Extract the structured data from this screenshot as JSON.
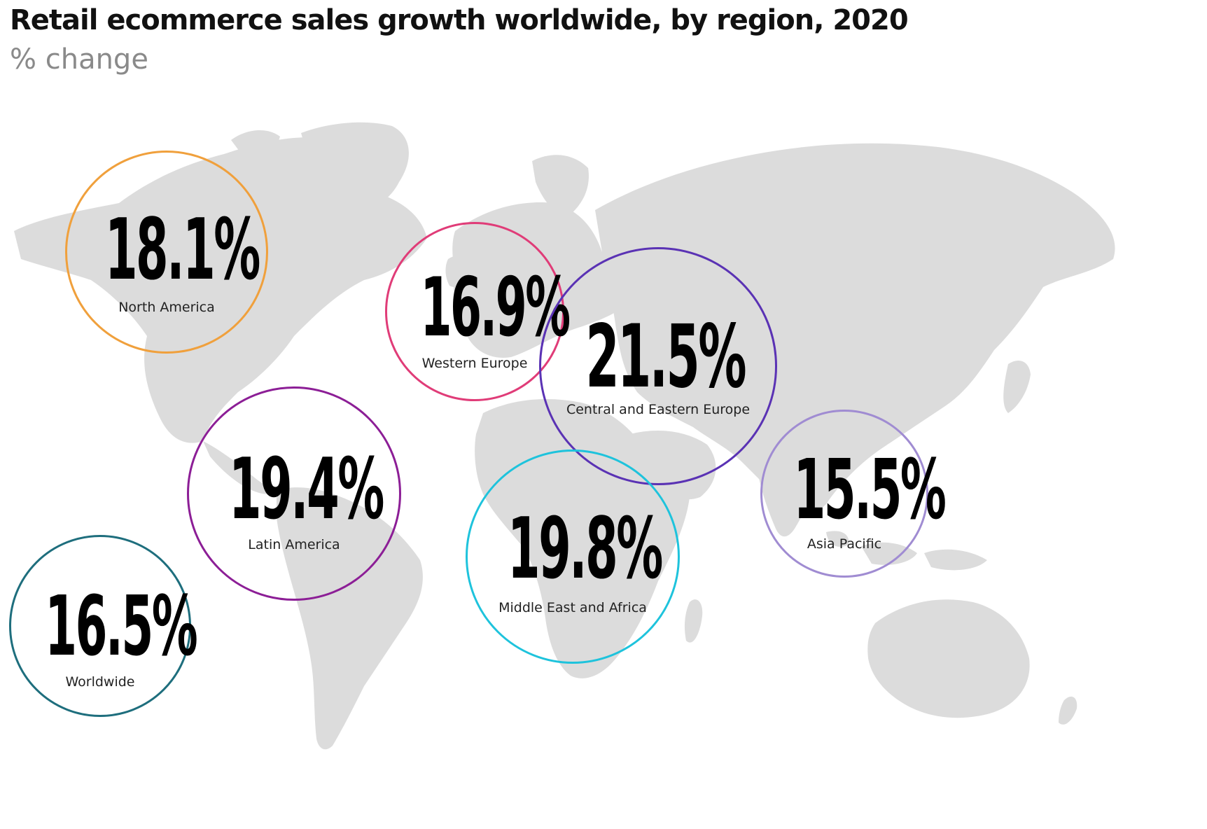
{
  "title": "Retail ecommerce sales growth worldwide, by region, 2020",
  "subtitle": "% change",
  "chart_data": {
    "type": "bubble-map",
    "title": "Retail ecommerce sales growth worldwide, by region, 2020",
    "subtitle": "% change",
    "unit": "%",
    "regions": [
      {
        "name": "North America",
        "value": 18.1,
        "label": "18.1%",
        "color": "#f0a03c"
      },
      {
        "name": "Western Europe",
        "value": 16.9,
        "label": "16.9%",
        "color": "#e03c78"
      },
      {
        "name": "Central and Eastern Europe",
        "value": 21.5,
        "label": "21.5%",
        "color": "#5a32b4"
      },
      {
        "name": "Latin America",
        "value": 19.4,
        "label": "19.4%",
        "color": "#8c1e96"
      },
      {
        "name": "Middle East and Africa",
        "value": 19.8,
        "label": "19.8%",
        "color": "#1ec3dc"
      },
      {
        "name": "Asia Pacific",
        "value": 15.5,
        "label": "15.5%",
        "color": "#a08cd2"
      },
      {
        "name": "Worldwide",
        "value": 16.5,
        "label": "16.5%",
        "color": "#1e6e7d"
      }
    ]
  },
  "colors": {
    "map_fill": "#dcdcdc",
    "title": "#111111",
    "subtitle": "#8a8a8a"
  }
}
